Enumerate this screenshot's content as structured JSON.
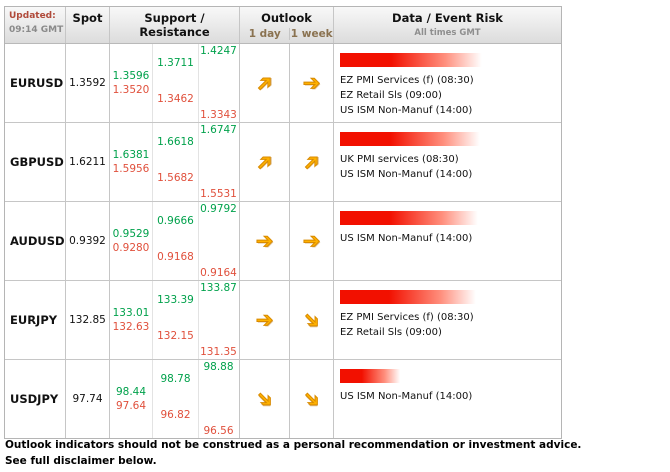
{
  "header": {
    "updated_label": "Updated:",
    "updated_time": "09:14 GMT",
    "spot_label": "Spot",
    "support_resistance_label": "Support / Resistance",
    "outlook_label": "Outlook",
    "one_day_label": "1 day",
    "one_week_label": "1 week",
    "data_event_risk_label": "Data / Event Risk",
    "all_times_label": "All times GMT"
  },
  "icons": {
    "arrow_glyph": "➔"
  },
  "colors": {
    "resistance_green": "#00a14b",
    "support_red": "#e0503c",
    "arrow_gold": "#ffb200",
    "risk_bar_red": "#f21000"
  },
  "rows": [
    {
      "pair": "EURUSD",
      "spot": "1.3592",
      "levels": {
        "r1": "1.3596",
        "s1": "1.3520",
        "r2": "1.3711",
        "s2": "1.3462",
        "r3": "1.4247",
        "s3": "1.3343"
      },
      "outlook_1d": "up",
      "outlook_1w": "right",
      "risk_bar_width": "68%",
      "events": [
        "EZ PMI Services (f) (08:30)",
        "EZ Retail Sls (09:00)",
        "US ISM Non-Manuf (14:00)"
      ]
    },
    {
      "pair": "GBPUSD",
      "spot": "1.6211",
      "levels": {
        "r1": "1.6381",
        "s1": "1.5956",
        "r2": "1.6618",
        "s2": "1.5682",
        "r3": "1.6747",
        "s3": "1.5531"
      },
      "outlook_1d": "up",
      "outlook_1w": "up",
      "risk_bar_width": "67%",
      "events": [
        "UK PMI services (08:30)",
        "US ISM Non-Manuf (14:00)"
      ]
    },
    {
      "pair": "AUDUSD",
      "spot": "0.9392",
      "levels": {
        "r1": "0.9529",
        "s1": "0.9280",
        "r2": "0.9666",
        "s2": "0.9168",
        "r3": "0.9792",
        "s3": "0.9164"
      },
      "outlook_1d": "right",
      "outlook_1w": "right",
      "risk_bar_width": "66%",
      "events": [
        "US ISM Non-Manuf (14:00)"
      ]
    },
    {
      "pair": "EURJPY",
      "spot": "132.85",
      "levels": {
        "r1": "133.01",
        "s1": "132.63",
        "r2": "133.39",
        "s2": "132.15",
        "r3": "133.87",
        "s3": "131.35"
      },
      "outlook_1d": "right",
      "outlook_1w": "down",
      "risk_bar_width": "65%",
      "events": [
        "EZ PMI Services (f) (08:30)",
        "EZ Retail Sls (09:00)"
      ]
    },
    {
      "pair": "USDJPY",
      "spot": "97.74",
      "levels": {
        "r1": "98.44",
        "s1": "97.64",
        "r2": "98.78",
        "s2": "96.82",
        "r3": "98.88",
        "s3": "96.56"
      },
      "outlook_1d": "down",
      "outlook_1w": "down",
      "risk_bar_width": "29%",
      "events": [
        "US ISM Non-Manuf (14:00)"
      ]
    }
  ],
  "footer": {
    "line1": "Outlook indicators should not be construed as a personal recommendation or investment advice.",
    "line2": "See full disclaimer below."
  }
}
